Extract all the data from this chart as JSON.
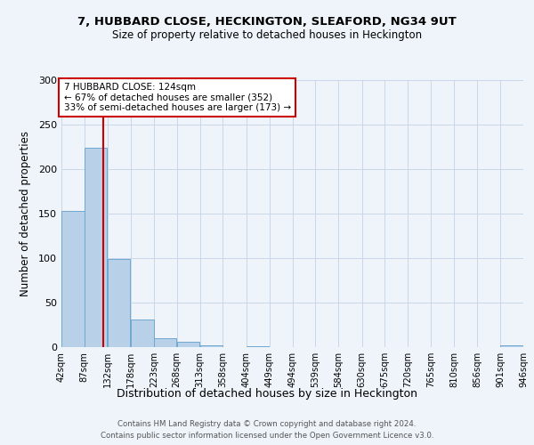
{
  "title1": "7, HUBBARD CLOSE, HECKINGTON, SLEAFORD, NG34 9UT",
  "title2": "Size of property relative to detached houses in Heckington",
  "xlabel": "Distribution of detached houses by size in Heckington",
  "ylabel": "Number of detached properties",
  "footer1": "Contains HM Land Registry data © Crown copyright and database right 2024.",
  "footer2": "Contains public sector information licensed under the Open Government Licence v3.0.",
  "annotation_line1": "7 HUBBARD CLOSE: 124sqm",
  "annotation_line2": "← 67% of detached houses are smaller (352)",
  "annotation_line3": "33% of semi-detached houses are larger (173) →",
  "property_size": 124,
  "bin_edges": [
    42,
    87,
    132,
    178,
    223,
    268,
    313,
    358,
    404,
    449,
    494,
    539,
    584,
    630,
    675,
    720,
    765,
    810,
    856,
    901,
    946
  ],
  "bin_counts": [
    153,
    224,
    99,
    31,
    10,
    6,
    2,
    0,
    1,
    0,
    0,
    0,
    0,
    0,
    0,
    0,
    0,
    0,
    0,
    2
  ],
  "bar_color": "#b8d0e8",
  "bar_edge_color": "#6fa8d0",
  "vline_color": "#cc0000",
  "annotation_box_color": "#cc0000",
  "annotation_bg_color": "#ffffff",
  "grid_color": "#c8d8e8",
  "background_color": "#eef4fa",
  "tick_labels": [
    "42sqm",
    "87sqm",
    "132sqm",
    "178sqm",
    "223sqm",
    "268sqm",
    "313sqm",
    "358sqm",
    "404sqm",
    "449sqm",
    "494sqm",
    "539sqm",
    "584sqm",
    "630sqm",
    "675sqm",
    "720sqm",
    "765sqm",
    "810sqm",
    "856sqm",
    "901sqm",
    "946sqm"
  ]
}
